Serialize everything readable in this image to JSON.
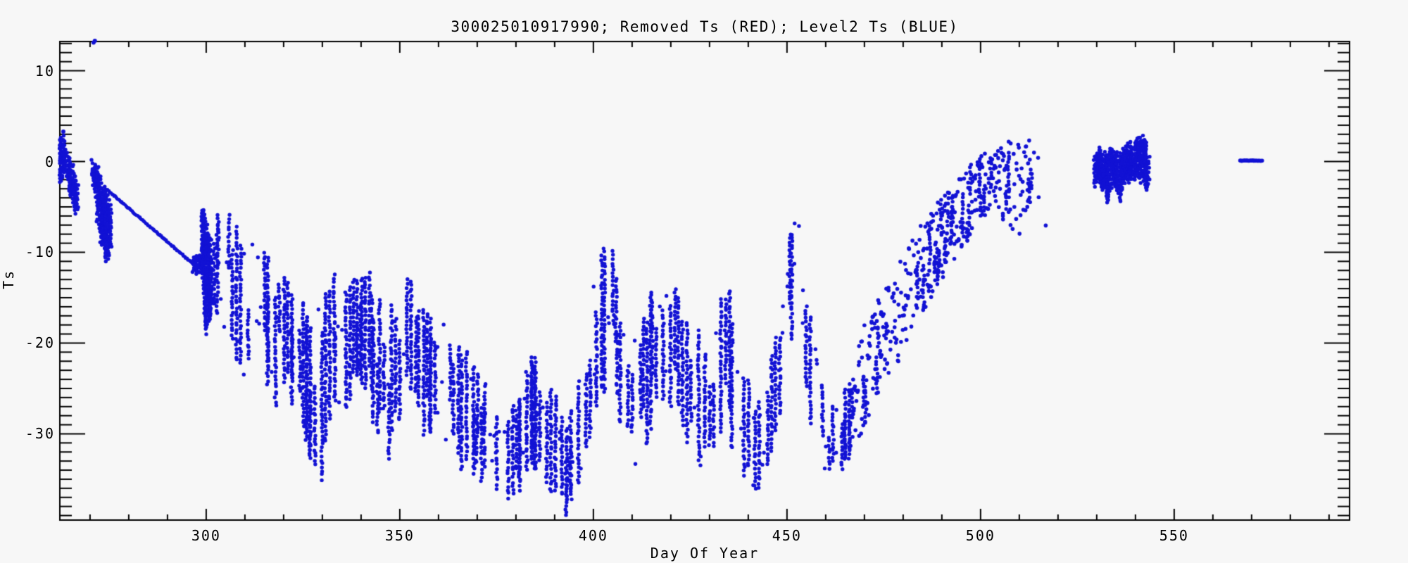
{
  "window": {
    "background": "#f7f7f7",
    "foreground": "#000000"
  },
  "chart_data": {
    "type": "scatter",
    "title": "300025010917990; Removed Ts (RED); Level2 Ts (BLUE)",
    "xlabel": "Day Of Year",
    "ylabel": "Ts",
    "xlim": [
      262.2,
      595.3
    ],
    "ylim": [
      -39.5,
      13.22
    ],
    "grid": false,
    "legend_position": "none",
    "axis_color": "#000000",
    "x_ticks": {
      "major": [
        {
          "value": 300,
          "label": "300"
        },
        {
          "value": 350,
          "label": "350"
        },
        {
          "value": 400,
          "label": "400"
        },
        {
          "value": 450,
          "label": "450"
        },
        {
          "value": 500,
          "label": "500"
        },
        {
          "value": 550,
          "label": "550"
        }
      ],
      "minor_step": 10
    },
    "y_ticks": {
      "major": [
        {
          "value": 10,
          "label": "10"
        },
        {
          "value": 0,
          "label": "0"
        },
        {
          "value": -10,
          "label": "-10"
        },
        {
          "value": -20,
          "label": "-20"
        },
        {
          "value": -30,
          "label": "-30"
        }
      ],
      "minor_step": 1
    },
    "series": [
      {
        "name": "Removed Ts",
        "legend_color_word": "RED",
        "color": "#cc0000",
        "segments": []
      },
      {
        "name": "Level2 Ts",
        "legend_color_word": "BLUE",
        "color": "#1212d4",
        "segments": [
          {
            "kind": "streaks",
            "name": "start-cluster-a",
            "density": "solid",
            "envelope": [
              [
                262.3,
                -2.5,
                2.6
              ],
              [
                263,
                -2,
                3
              ],
              [
                263.6,
                -1.2,
                1.6
              ],
              [
                264.2,
                -2.6,
                0.6
              ],
              [
                264.8,
                -4,
                0.2
              ],
              [
                265.4,
                -3.2,
                -0.2
              ],
              [
                266,
                -6.3,
                -1.4
              ],
              [
                266.8,
                -5.6,
                -2.6
              ]
            ]
          },
          {
            "kind": "streaks",
            "name": "start-cluster-b",
            "density": "solid",
            "envelope": [
              [
                270.7,
                -2,
                0.2
              ],
              [
                271.3,
                -4,
                -0.5
              ],
              [
                271.9,
                -6,
                -0.6
              ],
              [
                272.4,
                -8,
                -1
              ],
              [
                272.9,
                -9.5,
                -2
              ],
              [
                273.4,
                -10.5,
                -2.6
              ],
              [
                273.9,
                -11.3,
                -3
              ],
              [
                274.5,
                -11,
                -3.2
              ],
              [
                275,
                -10.5,
                -4.2
              ],
              [
                275.5,
                -9.4,
                -5.2
              ]
            ]
          },
          {
            "kind": "line",
            "name": "interpolated-ramp",
            "from": [
              274.4,
              -3.1
            ],
            "to": [
              296.9,
              -11.4
            ],
            "radius": 2.4,
            "jitter": 0.7
          },
          {
            "kind": "streaks",
            "name": "ramp-end-blob",
            "density": "solid",
            "envelope": [
              [
                296.6,
                -12.3,
                -10.4
              ],
              [
                298.2,
                -12.3,
                -10.2
              ],
              [
                299.3,
                -12,
                -10.5
              ]
            ]
          },
          {
            "kind": "streaks",
            "name": "day300-plume",
            "density": "solid",
            "envelope": [
              [
                298.9,
                -13,
                -4.4
              ],
              [
                299.5,
                -17,
                -5
              ],
              [
                300,
                -19,
                -6
              ],
              [
                300.6,
                -18.5,
                -7
              ],
              [
                301.2,
                -16.5,
                -8.5
              ],
              [
                301.6,
                -15,
                -9.5
              ]
            ]
          },
          {
            "kind": "streaks",
            "name": "winter-oscillations",
            "density": "dense",
            "envelope": [
              [
                302,
                -16,
                -5
              ],
              [
                304,
                -19,
                -5
              ],
              [
                306,
                -21,
                -4.7
              ],
              [
                308,
                -22,
                -5
              ],
              [
                310,
                -24,
                -8
              ],
              [
                312,
                -21,
                -7.5
              ],
              [
                314,
                -23,
                -7.6
              ],
              [
                316,
                -25,
                -9
              ],
              [
                318,
                -27,
                -11
              ],
              [
                320,
                -26,
                -12
              ],
              [
                322,
                -28,
                -13
              ],
              [
                324,
                -30,
                -15
              ],
              [
                326,
                -32,
                -16
              ],
              [
                328,
                -36,
                -17
              ],
              [
                329,
                -36.5,
                -16
              ],
              [
                330,
                -35,
                -14
              ],
              [
                332,
                -31,
                -13
              ],
              [
                334,
                -29,
                -12
              ],
              [
                336,
                -28,
                -11
              ],
              [
                338,
                -26,
                -12
              ],
              [
                340,
                -25,
                -11
              ],
              [
                342,
                -28,
                -12
              ],
              [
                344,
                -31,
                -14
              ],
              [
                346,
                -34,
                -16
              ],
              [
                348,
                -33,
                -15
              ],
              [
                350,
                -30,
                -13
              ],
              [
                352,
                -28,
                -12
              ],
              [
                354,
                -29,
                -14
              ],
              [
                356,
                -31,
                -15
              ],
              [
                358,
                -32,
                -16
              ],
              [
                360,
                -33,
                -17
              ],
              [
                362,
                -32,
                -18
              ],
              [
                364,
                -33,
                -19
              ],
              [
                366,
                -34,
                -20
              ],
              [
                368,
                -35,
                -21
              ],
              [
                370,
                -35,
                -22
              ],
              [
                372,
                -36,
                -24
              ],
              [
                374,
                -36,
                -25
              ],
              [
                376,
                -37,
                -26
              ],
              [
                378,
                -38,
                -27
              ],
              [
                380,
                -38.5,
                -26
              ],
              [
                382,
                -36,
                -23
              ],
              [
                384,
                -34,
                -20
              ],
              [
                386,
                -35,
                -19
              ],
              [
                388,
                -36,
                -22
              ],
              [
                390,
                -37,
                -25
              ],
              [
                392,
                -39,
                -28
              ],
              [
                393,
                -39.3,
                -26.5
              ],
              [
                394,
                -38.5,
                -25
              ],
              [
                396,
                -36,
                -20
              ],
              [
                398,
                -33,
                -16
              ],
              [
                400,
                -30,
                -13
              ],
              [
                402,
                -27,
                -10
              ],
              [
                404,
                -26,
                -7.8
              ],
              [
                406,
                -29,
                -11
              ],
              [
                408,
                -33,
                -15
              ],
              [
                410,
                -35,
                -18
              ],
              [
                412,
                -34,
                -17
              ],
              [
                414,
                -32,
                -15
              ],
              [
                416,
                -30,
                -13
              ],
              [
                418,
                -28,
                -12
              ],
              [
                420,
                -27,
                -11
              ],
              [
                422,
                -29,
                -13
              ],
              [
                424,
                -31,
                -15
              ],
              [
                426,
                -33,
                -17
              ],
              [
                428,
                -34,
                -18
              ],
              [
                430,
                -33,
                -16
              ],
              [
                432,
                -31,
                -14
              ],
              [
                434,
                -29,
                -12
              ],
              [
                436,
                -32,
                -16
              ],
              [
                438,
                -35,
                -20
              ],
              [
                440,
                -37,
                -24
              ],
              [
                442,
                -37,
                -26
              ],
              [
                444,
                -36,
                -25
              ],
              [
                446,
                -33,
                -21
              ],
              [
                448,
                -30,
                -17
              ],
              [
                450,
                -25,
                -11
              ],
              [
                451,
                -21.5,
                -7.8
              ],
              [
                452,
                -18,
                -4.6
              ],
              [
                453,
                -20,
                -6
              ],
              [
                454,
                -26,
                -12
              ],
              [
                456,
                -30,
                -17
              ],
              [
                458,
                -33,
                -21
              ],
              [
                460,
                -34,
                -24
              ],
              [
                462,
                -35,
                -26
              ],
              [
                464,
                -34,
                -25
              ],
              [
                466,
                -33,
                -24
              ],
              [
                467,
                -32,
                -22.5
              ]
            ]
          },
          {
            "kind": "streaks",
            "name": "spring-rise",
            "density": "medium",
            "envelope": [
              [
                467,
                -32,
                -22
              ],
              [
                470,
                -29,
                -18
              ],
              [
                473,
                -26.5,
                -15.5
              ],
              [
                476,
                -24,
                -13
              ],
              [
                479,
                -22,
                -11
              ],
              [
                482,
                -20,
                -9
              ],
              [
                485,
                -17,
                -6.5
              ],
              [
                488,
                -15,
                -5
              ],
              [
                491,
                -12.5,
                -3.5
              ],
              [
                494,
                -10,
                -2
              ],
              [
                497,
                -8.5,
                -0.5
              ],
              [
                500,
                -7,
                0.5
              ],
              [
                502,
                -5.5,
                1.5
              ],
              [
                504,
                -5,
                2
              ],
              [
                506,
                -6.5,
                2.5
              ],
              [
                508,
                -8,
                3
              ],
              [
                510,
                -8,
                3.2
              ],
              [
                512,
                -6,
                3
              ],
              [
                513,
                -5,
                2.5
              ]
            ]
          },
          {
            "kind": "streaks",
            "name": "trailing-sparse",
            "density": "sparse",
            "envelope": [
              [
                514,
                -5,
                1.5
              ],
              [
                515.5,
                -6.5,
                2.8
              ],
              [
                517,
                -8.3,
                1.5
              ],
              [
                519,
                -8,
                -1
              ]
            ]
          },
          {
            "kind": "streaks",
            "name": "summer-band",
            "density": "solid",
            "envelope": [
              [
                529.5,
                -2.5,
                0.5
              ],
              [
                530,
                -3.5,
                1
              ],
              [
                530.5,
                -2,
                1.3
              ],
              [
                531,
                -2.5,
                1.5
              ],
              [
                531.5,
                -3.5,
                0.8
              ],
              [
                532,
                -2.8,
                1.2
              ],
              [
                532.5,
                -4,
                0.6
              ],
              [
                533,
                -4.8,
                0.8
              ],
              [
                533.5,
                -3,
                1.4
              ],
              [
                534,
                -2.5,
                1.5
              ],
              [
                534.5,
                -3.2,
                1
              ],
              [
                535,
                -2.8,
                1.2
              ],
              [
                535.5,
                -3.5,
                0.8
              ],
              [
                536,
                -4.5,
                1
              ],
              [
                536.5,
                -3.8,
                1.2
              ],
              [
                537,
                -2.5,
                1.6
              ],
              [
                537.5,
                -2,
                1.8
              ],
              [
                538,
                -2.6,
                2
              ],
              [
                538.5,
                -2.2,
                1.8
              ],
              [
                539,
                -1.8,
                2.2
              ],
              [
                539.5,
                -2.4,
                2
              ],
              [
                540,
                -1.6,
                2.4
              ],
              [
                540.5,
                -2,
                2.5
              ],
              [
                541,
                -2.4,
                2.7
              ],
              [
                541.5,
                -1.5,
                2.8
              ],
              [
                542,
                -2,
                2.7
              ],
              [
                542.5,
                -2.8,
                2.2
              ],
              [
                543,
                -3.4,
                1.6
              ],
              [
                543.5,
                -2.6,
                0.8
              ]
            ]
          },
          {
            "kind": "line",
            "name": "isolated-dash",
            "from": [
              567.1,
              0.1
            ],
            "to": [
              572.7,
              0.1
            ],
            "radius": 2.8,
            "jitter": 0.4
          },
          {
            "kind": "points",
            "name": "outlier-points",
            "points": [
              [
                263.1,
                3.3
              ],
              [
                270.9,
                13.1
              ],
              [
                271.25,
                13.3
              ]
            ]
          }
        ]
      }
    ]
  }
}
